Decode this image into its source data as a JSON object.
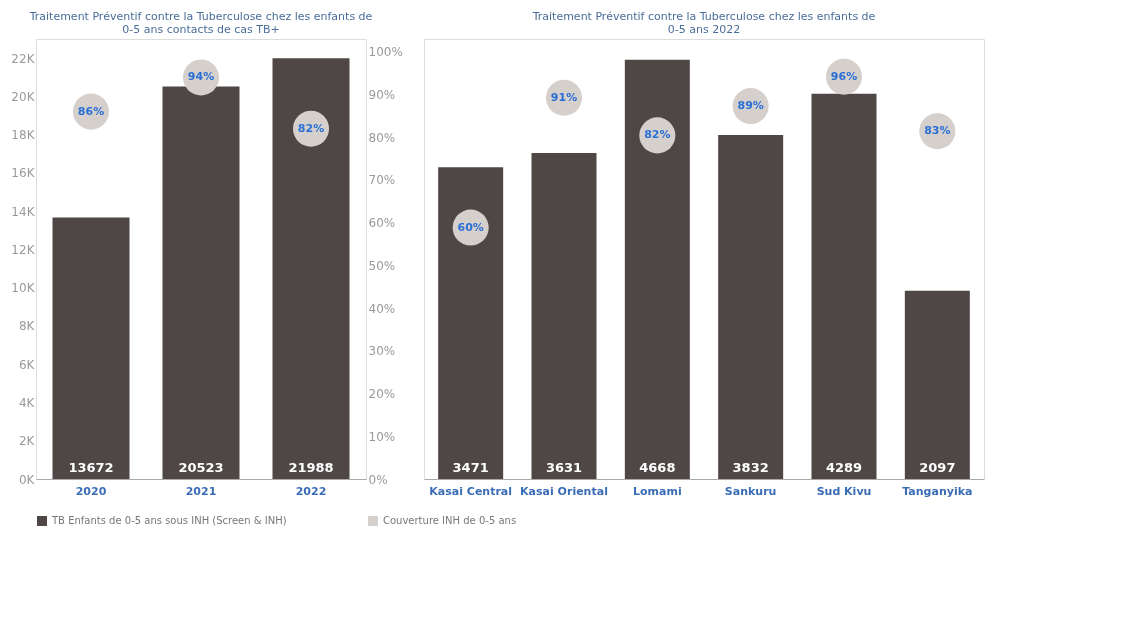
{
  "chart_data": [
    {
      "type": "bar",
      "title": "Traitement Préventif contre la Tuberculose chez les enfants de 0-5 ans contacts de cas TB+",
      "categories": [
        "2020",
        "2021",
        "2022"
      ],
      "data_labels": true,
      "marker": "circle",
      "legend": "bottom",
      "series": [
        {
          "name": "TB Enfants de 0-5 ans sous INH (Screen & INH)",
          "color": "#4f4746",
          "values": [
            13672,
            20523,
            21988
          ]
        },
        {
          "name": "Couverture INH de 0-5 ans",
          "type": "scatter",
          "axis": "y2",
          "color": "#d6d0cc",
          "values": [
            86,
            94,
            82
          ],
          "value_labels": [
            "86%",
            "94%",
            "82%"
          ]
        }
      ],
      "ylim": [
        0,
        23000
      ],
      "yticks": [
        {
          "value": 0,
          "label": "0K"
        },
        {
          "value": 2000,
          "label": "2K"
        },
        {
          "value": 4000,
          "label": "4K"
        },
        {
          "value": 6000,
          "label": "6K"
        },
        {
          "value": 8000,
          "label": "8K"
        },
        {
          "value": 10000,
          "label": "10K"
        },
        {
          "value": 12000,
          "label": "12K"
        },
        {
          "value": 14000,
          "label": "14K"
        },
        {
          "value": 16000,
          "label": "16K"
        },
        {
          "value": 18000,
          "label": "18K"
        },
        {
          "value": 20000,
          "label": "20K"
        },
        {
          "value": 22000,
          "label": "22K"
        }
      ],
      "y2lim": [
        0,
        103
      ],
      "y2ticks": [
        {
          "value": 0,
          "label": "0%"
        },
        {
          "value": 10,
          "label": "10%"
        },
        {
          "value": 20,
          "label": "20%"
        },
        {
          "value": 30,
          "label": "30%"
        },
        {
          "value": 40,
          "label": "40%"
        },
        {
          "value": 50,
          "label": "50%"
        },
        {
          "value": 60,
          "label": "60%"
        },
        {
          "value": 70,
          "label": "70%"
        },
        {
          "value": 80,
          "label": "80%"
        },
        {
          "value": 90,
          "label": "90%"
        },
        {
          "value": 100,
          "label": "100%"
        }
      ]
    },
    {
      "type": "bar",
      "title": "Traitement Préventif contre la Tuberculose chez les enfants de 0-5 ans 2022",
      "categories": [
        "Kasai Central",
        "Kasai Oriental",
        "Lomami",
        "Sankuru",
        "Sud Kivu",
        "Tanganyika"
      ],
      "data_labels": true,
      "marker": "circle",
      "tick_labels": "x",
      "series": [
        {
          "color": "#4f4746",
          "values": [
            3471,
            3631,
            4668,
            3832,
            4289,
            2097
          ]
        },
        {
          "type": "scatter",
          "axis": "y2",
          "color": "#d6d0cc",
          "values": [
            60,
            91,
            82,
            89,
            96,
            83
          ],
          "value_labels": [
            "60%",
            "91%",
            "82%",
            "89%",
            "96%",
            "83%"
          ]
        }
      ],
      "ylim": [
        0,
        4900
      ],
      "y2lim": [
        0,
        105
      ]
    }
  ]
}
